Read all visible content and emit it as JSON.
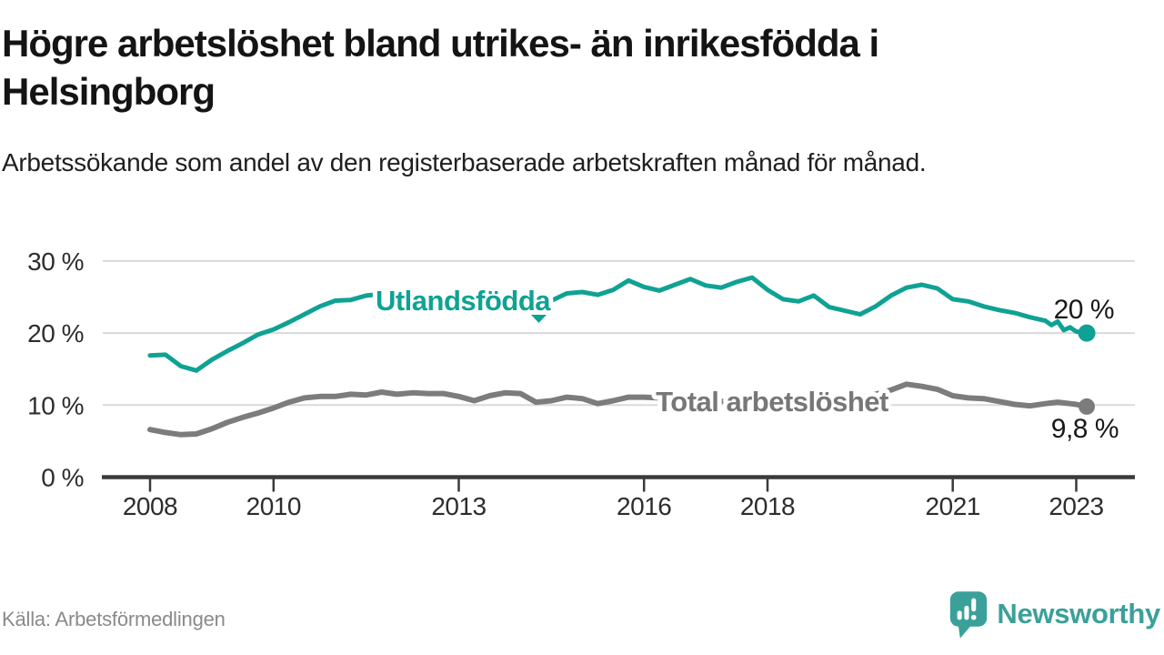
{
  "chart_data": {
    "type": "line",
    "title": "Högre arbetslöshet bland utrikes- än inrikesfödda i Helsingborg",
    "subtitle": "Arbetssökande som andel av den registerbaserade arbetskraften månad för månad.",
    "source": "Källa: Arbetsförmedlingen",
    "branding": "Newsworthy",
    "xlabel": "",
    "ylabel": "",
    "ylim": [
      0,
      30
    ],
    "xlim": [
      2007.2,
      2023.9
    ],
    "grid": true,
    "legend": "direct-labels-on-lines",
    "x": [
      2008.0,
      2008.25,
      2008.5,
      2008.75,
      2009.0,
      2009.25,
      2009.5,
      2009.75,
      2010.0,
      2010.25,
      2010.5,
      2010.75,
      2011.0,
      2011.25,
      2011.5,
      2011.75,
      2012.0,
      2012.25,
      2012.5,
      2012.75,
      2013.0,
      2013.25,
      2013.5,
      2013.75,
      2014.0,
      2014.25,
      2014.5,
      2014.75,
      2015.0,
      2015.25,
      2015.5,
      2015.75,
      2016.0,
      2016.25,
      2016.5,
      2016.75,
      2017.0,
      2017.25,
      2017.5,
      2017.75,
      2018.0,
      2018.25,
      2018.5,
      2018.75,
      2019.0,
      2019.25,
      2019.5,
      2019.75,
      2020.0,
      2020.25,
      2020.5,
      2020.75,
      2021.0,
      2021.25,
      2021.5,
      2021.75,
      2022.0,
      2022.25,
      2022.5,
      2022.6,
      2022.7,
      2022.8,
      2022.9,
      2023.0,
      2023.17
    ],
    "series": [
      {
        "name": "Utlandsfödda",
        "color": "#0FA294",
        "end_label": "20 %",
        "end_value": 20.0,
        "values": [
          16.9,
          17.0,
          15.4,
          14.8,
          16.3,
          17.5,
          18.6,
          19.8,
          20.5,
          21.5,
          22.6,
          23.7,
          24.5,
          24.6,
          25.2,
          25.4,
          25.0,
          24.8,
          25.0,
          24.7,
          24.5,
          24.7,
          24.3,
          24.1,
          24.3,
          24.0,
          24.5,
          25.5,
          25.7,
          25.3,
          26.0,
          27.3,
          26.4,
          25.9,
          26.7,
          27.5,
          26.6,
          26.3,
          27.1,
          27.7,
          26.0,
          24.7,
          24.4,
          25.2,
          23.6,
          23.1,
          22.6,
          23.7,
          25.2,
          26.3,
          26.7,
          26.2,
          24.7,
          24.4,
          23.7,
          23.2,
          22.8,
          22.2,
          21.7,
          21.1,
          21.6,
          20.4,
          20.8,
          20.2,
          20.0
        ]
      },
      {
        "name": "Total arbetslöshet",
        "color": "#7C7C7C",
        "end_label": "9,8 %",
        "end_value": 9.8,
        "values": [
          6.6,
          6.2,
          5.9,
          6.0,
          6.7,
          7.6,
          8.3,
          8.9,
          9.6,
          10.4,
          11.0,
          11.2,
          11.2,
          11.5,
          11.4,
          11.8,
          11.5,
          11.7,
          11.6,
          11.6,
          11.2,
          10.6,
          11.3,
          11.7,
          11.6,
          10.4,
          10.6,
          11.1,
          10.9,
          10.2,
          10.6,
          11.1,
          11.1,
          11.0,
          10.8,
          10.7,
          10.6,
          10.5,
          10.4,
          10.3,
          10.3,
          10.2,
          10.3,
          10.4,
          10.5,
          10.7,
          11.0,
          11.5,
          12.1,
          12.9,
          12.6,
          12.2,
          11.3,
          11.0,
          10.9,
          10.5,
          10.1,
          9.9,
          10.2,
          10.3,
          10.4,
          10.3,
          10.2,
          10.1,
          9.8
        ]
      }
    ],
    "xticks": {
      "values": [
        2008,
        2010,
        2013,
        2016,
        2018,
        2021,
        2023
      ],
      "labels": [
        "2008",
        "2010",
        "2013",
        "2016",
        "2018",
        "2021",
        "2023"
      ]
    },
    "yticks": {
      "values": [
        0,
        10,
        20,
        30
      ],
      "labels": [
        "0 %",
        "10 %",
        "20 %",
        "30 %"
      ]
    },
    "colors": {
      "grid": "#dadada",
      "axis": "#3a3a3a",
      "text": "#2d2d2d",
      "annotation": "#191919",
      "logo_teal": "#3BA099"
    }
  }
}
